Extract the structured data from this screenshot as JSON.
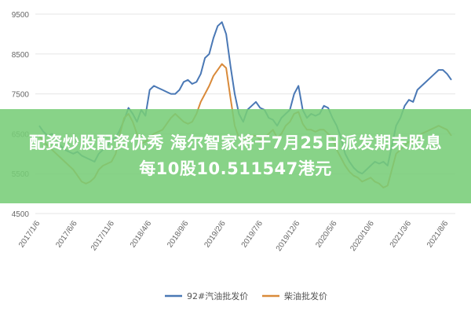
{
  "banner": {
    "line1": "配资炒股配资优秀 海尔智家将于7月25日派发期末股息",
    "line2": "每10股10.511547港元"
  },
  "chart_data": {
    "type": "line",
    "title": "",
    "xlabel": "",
    "ylabel": "",
    "ylim": [
      4500,
      9500
    ],
    "yticks": [
      4500,
      5500,
      6500,
      7500,
      8500,
      9500
    ],
    "x_tick_labels": [
      "2017/1/6",
      "2017/6/6",
      "2017/11/6",
      "2018/4/6",
      "2018/9/6",
      "2019/2/6",
      "2019/7/6",
      "2019/12/6",
      "2020/5/6",
      "2020/10/6",
      "2021/3/6",
      "2021/8/6"
    ],
    "grid": "horizontal",
    "legend_position": "bottom",
    "series": [
      {
        "name": "92#汽油批发价",
        "color": "#4a78b5",
        "values": [
          6700,
          6550,
          6450,
          6500,
          6400,
          6200,
          6100,
          6050,
          6000,
          6050,
          5950,
          5900,
          5850,
          5800,
          6000,
          6100,
          6200,
          6350,
          6400,
          6600,
          6850,
          7150,
          7000,
          6800,
          7100,
          6950,
          7600,
          7700,
          7650,
          7600,
          7550,
          7500,
          7500,
          7600,
          7800,
          7850,
          7750,
          7800,
          8000,
          8400,
          8500,
          8900,
          9200,
          9300,
          9000,
          8200,
          7500,
          7000,
          6800,
          7100,
          7200,
          7300,
          7150,
          7100,
          6900,
          6850,
          6700,
          6900,
          7000,
          7100,
          7500,
          7700,
          7100,
          6900,
          7000,
          6950,
          7000,
          7200,
          7150,
          6900,
          6700,
          6400,
          6000,
          5800,
          5650,
          5550,
          5500,
          5600,
          5700,
          5800,
          5750,
          5800,
          5700,
          6200,
          6700,
          6900,
          7200,
          7350,
          7300,
          7600,
          7700,
          7800,
          7900,
          8000,
          8100,
          8100,
          8000,
          7850
        ]
      },
      {
        "name": "柴油批发价",
        "color": "#d98a3a",
        "values": [
          6450,
          6300,
          6200,
          6100,
          6000,
          5900,
          5800,
          5700,
          5600,
          5450,
          5300,
          5250,
          5300,
          5400,
          5600,
          5700,
          5750,
          5800,
          6000,
          6500,
          6900,
          7000,
          6800,
          6500,
          6250,
          6300,
          6400,
          6500,
          6550,
          6600,
          6750,
          6900,
          7000,
          6900,
          6800,
          6750,
          6800,
          7000,
          7300,
          7500,
          7700,
          7950,
          8100,
          8250,
          8150,
          7400,
          6700,
          6400,
          6300,
          6350,
          6450,
          6450,
          6350,
          6400,
          6500,
          6600,
          6400,
          6500,
          6700,
          6800,
          7000,
          7050,
          6750,
          6600,
          6600,
          6550,
          6600,
          6600,
          6500,
          6400,
          6100,
          5900,
          5700,
          5550,
          5450,
          5400,
          5300,
          5350,
          5400,
          5300,
          5250,
          5150,
          5200,
          5600,
          6000,
          6100,
          6200,
          6300,
          6300,
          6400,
          6500,
          6550,
          6600,
          6650,
          6700,
          6650,
          6600,
          6450
        ]
      }
    ]
  }
}
